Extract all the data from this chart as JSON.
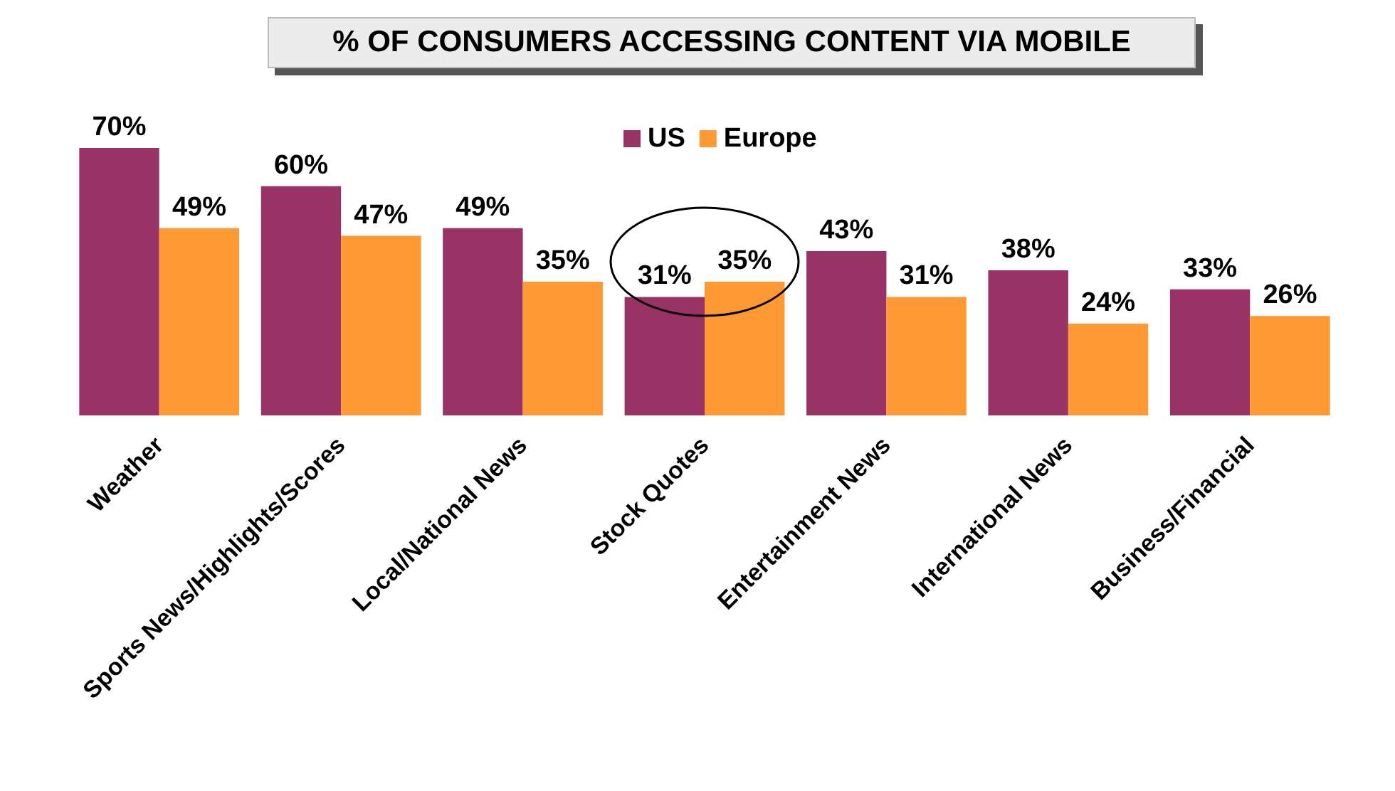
{
  "chart_data": {
    "type": "bar",
    "title": "% OF CONSUMERS ACCESSING CONTENT VIA MOBILE",
    "categories": [
      "Weather",
      "Sports News/Highlights/Scores",
      "Local/National News",
      "Stock Quotes",
      "Entertainment News",
      "International News",
      "Business/Financial"
    ],
    "series": [
      {
        "name": "US",
        "color": "#993366",
        "values": [
          70,
          60,
          49,
          31,
          43,
          38,
          33
        ],
        "value_labels": [
          "70%",
          "60%",
          "49%",
          "31%",
          "43%",
          "38%",
          "33%"
        ]
      },
      {
        "name": "Europe",
        "color": "#ff9933",
        "values": [
          49,
          47,
          35,
          35,
          31,
          24,
          26
        ],
        "value_labels": [
          "49%",
          "47%",
          "35%",
          "35%",
          "31%",
          "24%",
          "26%"
        ]
      }
    ],
    "legend": "top"
  }
}
